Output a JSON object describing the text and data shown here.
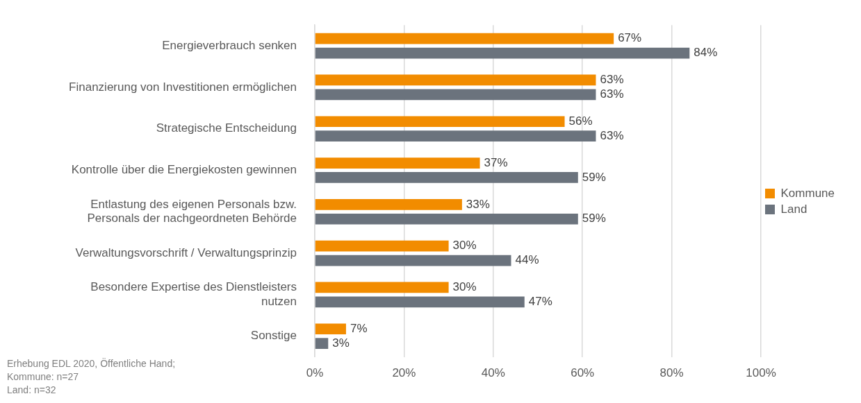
{
  "chart_data": {
    "type": "bar",
    "orientation": "horizontal",
    "categories": [
      "Energieverbrauch senken",
      "Finanzierung von Investitionen ermöglichen",
      "Strategische Entscheidung",
      "Kontrolle über die Energiekosten gewinnen",
      "Entlastung des eigenen Personals bzw. Personals der nachgeordneten Behörde",
      "Verwaltungsvorschrift / Verwaltungsprinzip",
      "Besondere Expertise des Dienstleisters nutzen",
      "Sonstige"
    ],
    "series": [
      {
        "name": "Kommune",
        "color": "#f28c00",
        "values": [
          67,
          63,
          56,
          37,
          33,
          30,
          30,
          7
        ],
        "value_labels": [
          "67%",
          "63%",
          "56%",
          "37%",
          "33%",
          "30%",
          "30%",
          "7%"
        ]
      },
      {
        "name": "Land",
        "color": "#6b737d",
        "values": [
          84,
          63,
          63,
          59,
          59,
          44,
          47,
          3
        ],
        "value_labels": [
          "84%",
          "63%",
          "63%",
          "59%",
          "59%",
          "44%",
          "47%",
          "3%"
        ]
      }
    ],
    "xlim": [
      0,
      100
    ],
    "xticks": [
      {
        "value": 0,
        "label": "0%"
      },
      {
        "value": 20,
        "label": "20%"
      },
      {
        "value": 40,
        "label": "40%"
      },
      {
        "value": 60,
        "label": "60%"
      },
      {
        "value": 80,
        "label": "80%"
      },
      {
        "value": 100,
        "label": "100%"
      }
    ],
    "grid": "x",
    "legend": "right",
    "annotations": [
      "Erhebung EDL 2020, Öffentliche Hand;",
      "Kommune: n=27",
      "Land: n=32"
    ]
  }
}
